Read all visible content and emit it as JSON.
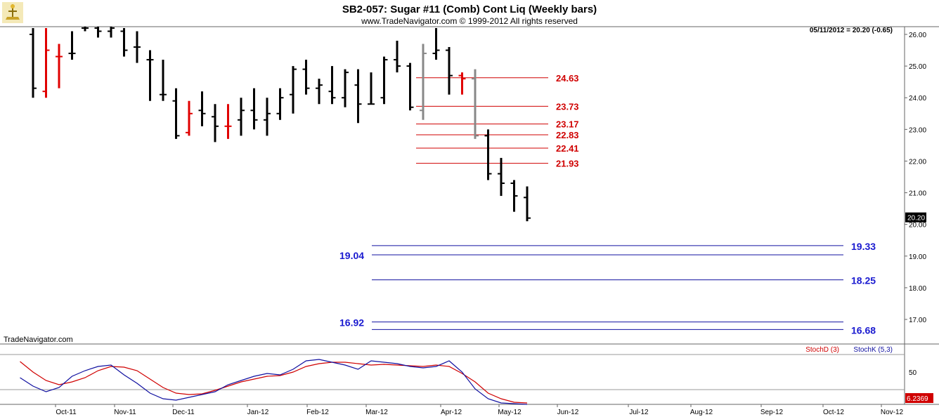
{
  "header": {
    "title": "SB2-057:  Sugar #11 (Comb) Cont Liq  (Weekly bars)",
    "copyright": "www.TradeNavigator.com © 1999-2012 All rights reserved",
    "last_quote": "05/11/2012 = 20.20 (-0.65)",
    "watermark": "TradeNavigator.com"
  },
  "chart_data": [
    {
      "type": "ohlc",
      "title": "SB2-057:  Sugar #11 (Comb) Cont Liq  (Weekly bars)",
      "ylim": [
        16.2,
        26.4
      ],
      "y_ticks": [
        "26.00",
        "25.00",
        "24.00",
        "23.00",
        "22.00",
        "21.00",
        "20.00",
        "19.00",
        "18.00",
        "17.00"
      ],
      "last_price_label": "20.20",
      "colors": {
        "up": "#000000",
        "down_red": "#e00000",
        "gray": "#888888",
        "green_tick": "#22cc22",
        "resistance": "#d00000",
        "support": "#1010a0"
      },
      "bars": [
        {
          "high": 26.2,
          "low": 24.0,
          "open": 26.0,
          "close": 24.3,
          "color": "#000000"
        },
        {
          "high": 26.2,
          "low": 24.0,
          "open": 24.2,
          "close": 25.5,
          "color": "#e00000"
        },
        {
          "high": 25.7,
          "low": 24.3,
          "open": 25.3,
          "close": 25.3,
          "color": "#e00000"
        },
        {
          "high": 26.1,
          "low": 25.2,
          "open": 25.4,
          "close": 25.4,
          "color": "#000000"
        },
        {
          "high": 26.3,
          "low": 26.1,
          "open": 26.2,
          "close": 26.2,
          "color": "#000000"
        },
        {
          "high": 26.3,
          "low": 25.9,
          "open": 26.2,
          "close": 26.1,
          "color": "#000000"
        },
        {
          "high": 26.3,
          "low": 25.9,
          "open": 26.1,
          "close": 26.2,
          "color": "#000000"
        },
        {
          "high": 26.2,
          "low": 25.3,
          "open": 26.1,
          "close": 25.5,
          "color": "#000000"
        },
        {
          "high": 26.1,
          "low": 25.1,
          "open": 25.6,
          "close": 25.6,
          "color": "#000000"
        },
        {
          "high": 25.5,
          "low": 23.9,
          "open": 25.2,
          "close": 25.2,
          "color": "#000000"
        },
        {
          "high": 25.2,
          "low": 23.9,
          "open": 24.1,
          "close": 24.1,
          "color": "#000000"
        },
        {
          "high": 24.3,
          "low": 22.7,
          "open": 23.9,
          "close": 22.8,
          "color": "#000000"
        },
        {
          "high": 23.9,
          "low": 22.8,
          "open": 22.9,
          "close": 23.5,
          "color": "#e00000"
        },
        {
          "high": 24.2,
          "low": 23.1,
          "open": 23.6,
          "close": 23.5,
          "color": "#000000"
        },
        {
          "high": 23.8,
          "low": 22.6,
          "open": 23.4,
          "close": 23.1,
          "color": "#000000"
        },
        {
          "high": 23.8,
          "low": 22.7,
          "open": 23.1,
          "close": 23.1,
          "color": "#e00000"
        },
        {
          "high": 24.0,
          "low": 22.8,
          "open": 23.3,
          "close": 23.6,
          "color": "#000000"
        },
        {
          "high": 24.3,
          "low": 23.0,
          "open": 23.6,
          "close": 23.3,
          "color": "#000000"
        },
        {
          "high": 24.0,
          "low": 22.8,
          "open": 23.3,
          "close": 23.5,
          "color": "#000000"
        },
        {
          "high": 24.3,
          "low": 23.3,
          "open": 23.5,
          "close": 24.0,
          "color": "#000000"
        },
        {
          "high": 25.0,
          "low": 23.5,
          "open": 24.1,
          "close": 24.9,
          "color": "#000000"
        },
        {
          "high": 25.2,
          "low": 24.1,
          "open": 24.9,
          "close": 24.3,
          "color": "#000000"
        },
        {
          "high": 24.6,
          "low": 23.8,
          "open": 24.3,
          "close": 24.4,
          "color": "#000000"
        },
        {
          "high": 25.0,
          "low": 23.8,
          "open": 24.2,
          "close": 24.0,
          "color": "#000000"
        },
        {
          "high": 24.9,
          "low": 23.7,
          "open": 24.0,
          "close": 24.8,
          "color": "#000000"
        },
        {
          "high": 24.9,
          "low": 23.2,
          "open": 24.4,
          "close": 23.8,
          "color": "#000000"
        },
        {
          "high": 24.8,
          "low": 23.8,
          "open": 23.8,
          "close": 23.8,
          "color": "#000000"
        },
        {
          "high": 25.3,
          "low": 23.8,
          "open": 24.0,
          "close": 25.2,
          "color": "#000000"
        },
        {
          "high": 25.8,
          "low": 24.8,
          "open": 25.2,
          "close": 25.0,
          "color": "#000000"
        },
        {
          "high": 25.1,
          "low": 23.6,
          "open": 25.0,
          "close": 23.7,
          "color": "#000000"
        },
        {
          "high": 25.7,
          "low": 23.3,
          "open": 23.6,
          "close": 25.4,
          "color": "#888888"
        },
        {
          "high": 26.2,
          "low": 25.2,
          "open": 25.4,
          "close": 25.5,
          "color": "#000000"
        },
        {
          "high": 25.6,
          "low": 24.1,
          "open": 25.5,
          "close": 24.7,
          "color": "#000000"
        },
        {
          "high": 24.8,
          "low": 24.1,
          "open": 24.7,
          "close": 24.6,
          "color": "#e00000"
        },
        {
          "high": 24.9,
          "low": 22.7,
          "open": 24.6,
          "close": 22.8,
          "color": "#888888"
        },
        {
          "high": 23.0,
          "low": 21.4,
          "open": 22.8,
          "close": 21.6,
          "color": "#000000"
        },
        {
          "high": 22.1,
          "low": 20.9,
          "open": 21.6,
          "close": 21.3,
          "color": "#000000"
        },
        {
          "high": 21.4,
          "low": 20.4,
          "open": 21.3,
          "close": 20.9,
          "color": "#000000"
        },
        {
          "high": 21.2,
          "low": 20.1,
          "open": 20.85,
          "close": 20.2,
          "color": "#000000"
        }
      ],
      "resistance_levels": [
        "24.63",
        "23.73",
        "23.17",
        "22.83",
        "22.41",
        "21.93"
      ],
      "support_levels": [
        {
          "value": "19.33",
          "label_side": "right"
        },
        {
          "value": "19.04",
          "label_side": "left"
        },
        {
          "value": "18.25",
          "label_side": "right"
        },
        {
          "value": "16.92",
          "label_side": "left"
        },
        {
          "value": "16.68",
          "label_side": "right"
        }
      ]
    },
    {
      "type": "line",
      "ylim": [
        0,
        100
      ],
      "y_ticks": [
        "50"
      ],
      "last_value_label": "6.2369",
      "series": [
        {
          "name": "StochD (3)",
          "color": "#d00000",
          "values": [
            65,
            50,
            38,
            32,
            36,
            42,
            52,
            58,
            57,
            52,
            40,
            28,
            20,
            18,
            19,
            24,
            30,
            36,
            40,
            44,
            45,
            50,
            58,
            62,
            64,
            64,
            62,
            60,
            61,
            60,
            59,
            58,
            60,
            58,
            48,
            36,
            20,
            12,
            7,
            6
          ]
        },
        {
          "name": "StochK (5,3)",
          "color": "#1010a0",
          "values": [
            42,
            30,
            22,
            28,
            44,
            52,
            58,
            60,
            46,
            34,
            20,
            12,
            10,
            14,
            18,
            22,
            32,
            38,
            44,
            48,
            46,
            54,
            66,
            68,
            64,
            60,
            54,
            66,
            64,
            62,
            58,
            56,
            58,
            66,
            50,
            26,
            12,
            6,
            5,
            4
          ]
        }
      ]
    }
  ],
  "x_axis": {
    "labels": [
      "Oct-11",
      "Nov-11",
      "Dec-11",
      "Jan-12",
      "Feb-12",
      "Mar-12",
      "Apr-12",
      "May-12",
      "Jun-12",
      "Jul-12",
      "Aug-12",
      "Sep-12",
      "Oct-12",
      "Nov-12"
    ]
  }
}
